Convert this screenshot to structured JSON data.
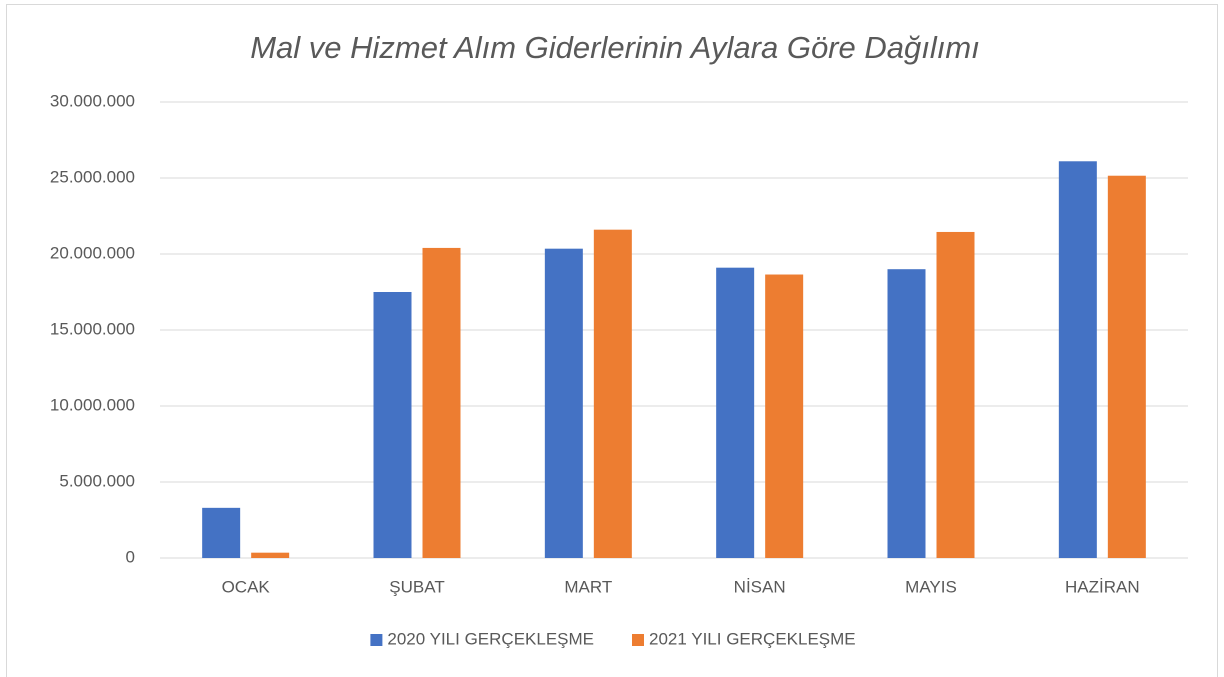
{
  "chart_data": {
    "type": "bar",
    "title": "Mal ve Hizmet Alım Giderlerinin Aylara Göre Dağılımı",
    "categories": [
      "OCAK",
      "ŞUBAT",
      "MART",
      "NİSAN",
      "MAYIS",
      "HAZİRAN"
    ],
    "series": [
      {
        "name": "2020 YILI GERÇEKLEŞME",
        "color": "#4472c4",
        "values": [
          3300000,
          17500000,
          20350000,
          19100000,
          19000000,
          26100000
        ]
      },
      {
        "name": "2021 YILI GERÇEKLEŞME",
        "color": "#ed7d31",
        "values": [
          350000,
          20400000,
          21600000,
          18650000,
          21450000,
          25150000
        ]
      }
    ],
    "ylim": [
      0,
      30000000
    ],
    "yticks": [
      0,
      {
        "value": 5000000,
        "label": "5.000.000"
      },
      {
        "value": 10000000,
        "label": "10.000.000"
      },
      {
        "value": 15000000,
        "label": "15.000.000"
      },
      {
        "value": 20000000,
        "label": "20.000.000"
      },
      {
        "value": 25000000,
        "label": "25.000.000"
      },
      {
        "value": 30000000,
        "label": "30.000.000"
      }
    ],
    "grid": true,
    "legend": "bottom"
  }
}
